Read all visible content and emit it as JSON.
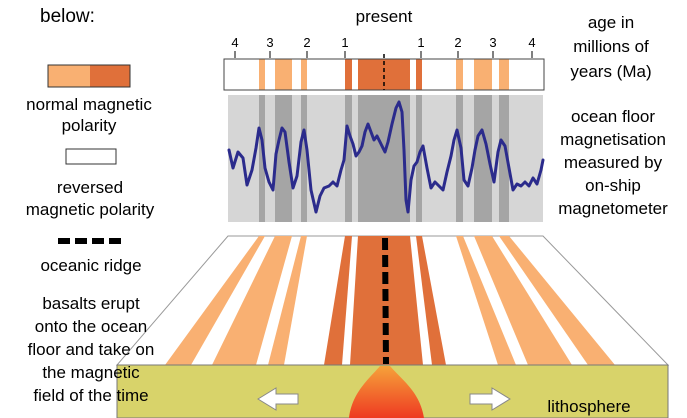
{
  "legend": {
    "header": "below:",
    "normal_label": [
      "normal magnetic",
      "polarity"
    ],
    "reversed_label": [
      "reversed",
      "magnetic polarity"
    ],
    "ridge_label": "oceanic ridge",
    "basalt_label": [
      "basalts erupt",
      "onto the ocean",
      "floor and take on",
      "the magnetic",
      "field of the time"
    ]
  },
  "timeline": {
    "present_label": "present",
    "age_label": [
      "age in",
      "millions of",
      "years (Ma)"
    ],
    "tick_labels": [
      "4",
      "3",
      "2",
      "1",
      "1",
      "2",
      "3",
      "4"
    ]
  },
  "magnetometer": {
    "label": [
      "ocean floor",
      "magnetisation",
      "measured by",
      "on-ship",
      "magnetometer"
    ]
  },
  "block": {
    "lithosphere_label": "lithosphere"
  },
  "colors": {
    "normal_light": "#f9b072",
    "normal_dark": "#e0703a",
    "reversed": "#ffffff",
    "panel_bg": "#d6d6d6",
    "panel_stripe": "#a5a5a5",
    "trace": "#2b2b8c",
    "lithosphere": "#d8d36a",
    "magma": "#f04a2a"
  },
  "icons": {
    "left_arrow": "arrow-left-icon",
    "right_arrow": "arrow-right-icon"
  }
}
